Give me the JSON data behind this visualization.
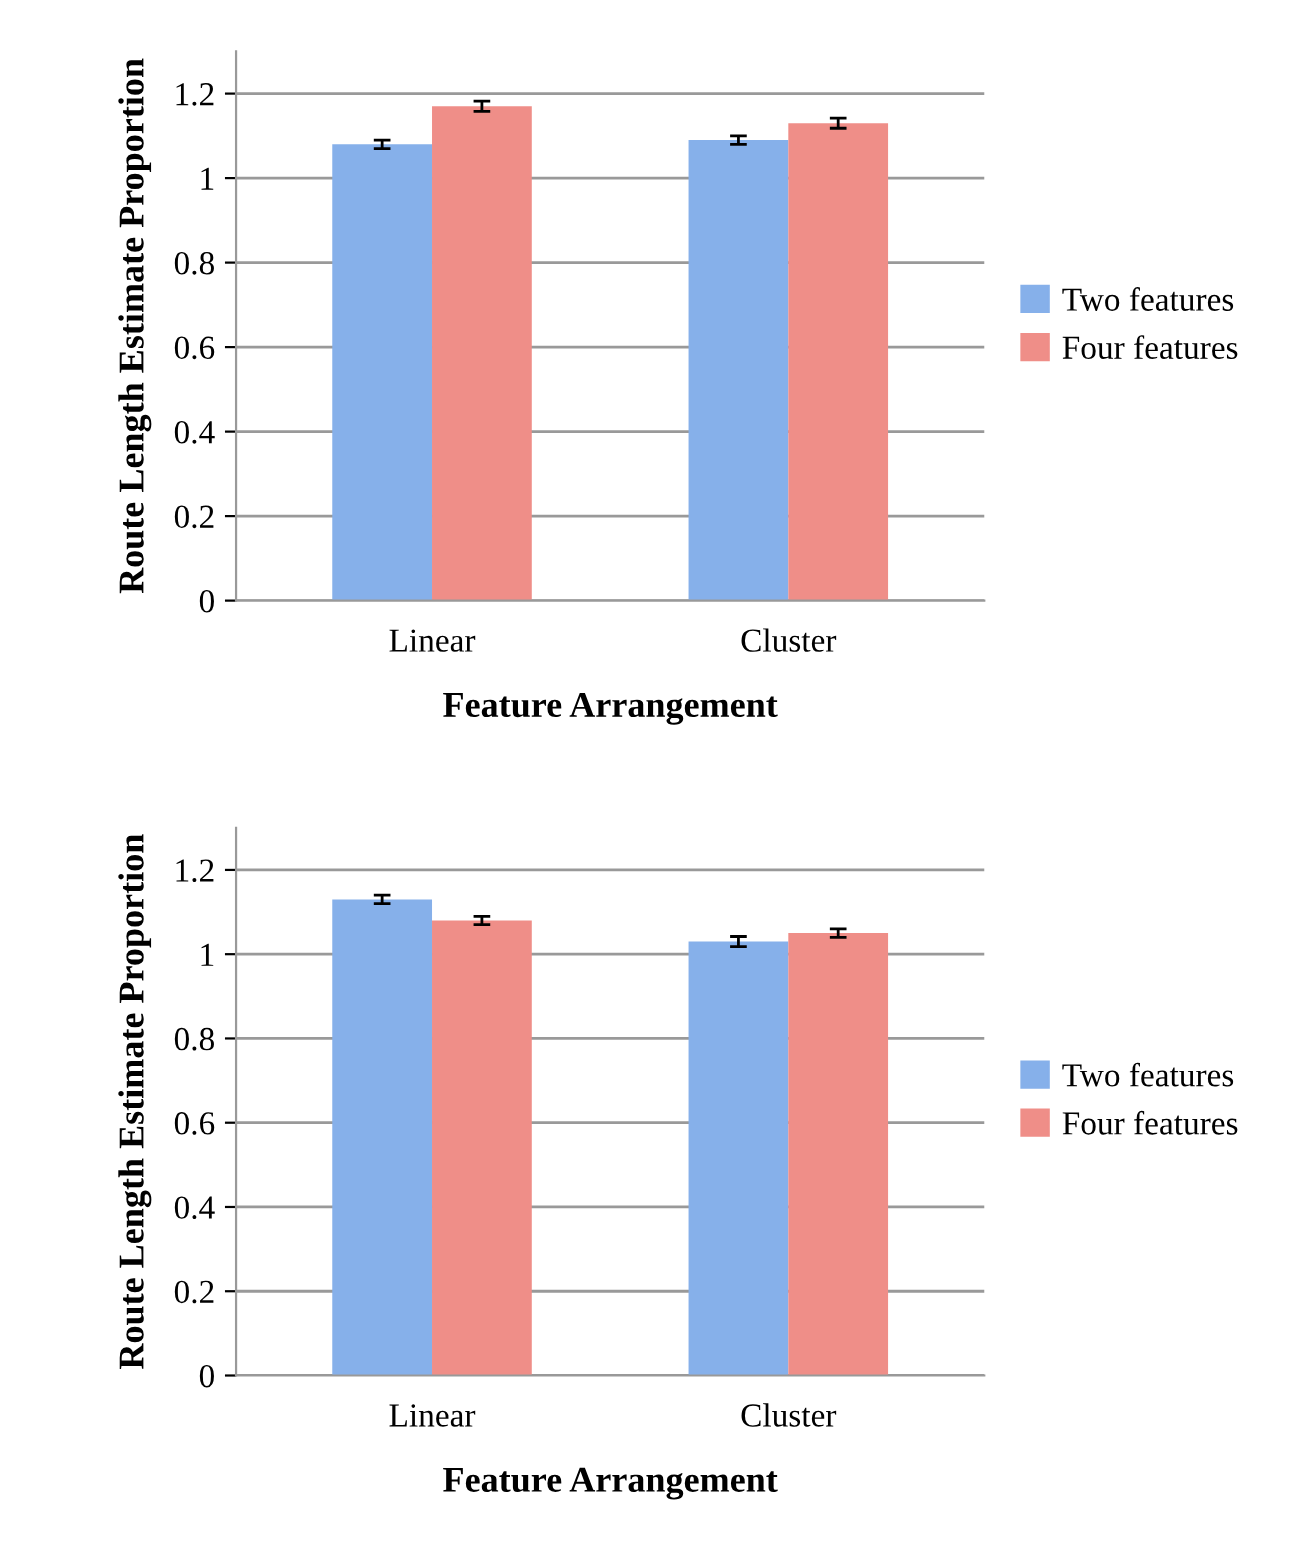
{
  "chart_data": [
    {
      "type": "bar",
      "categories": [
        "Linear",
        "Cluster"
      ],
      "xlabel": "Feature Arrangement",
      "ylabel": "Route Length Estimate Proportion",
      "ylim": [
        0,
        1.3
      ],
      "yticks": [
        0,
        0.2,
        0.4,
        0.6,
        0.8,
        1,
        1.2
      ],
      "grid": "y",
      "legend": "right",
      "series": [
        {
          "name": "Two features",
          "color": "#86b0ea",
          "values": [
            1.08,
            1.09
          ],
          "errors": [
            0.01,
            0.01
          ]
        },
        {
          "name": "Four features",
          "color": "#ef8e88",
          "values": [
            1.17,
            1.13
          ],
          "errors": [
            0.012,
            0.012
          ]
        }
      ]
    },
    {
      "type": "bar",
      "categories": [
        "Linear",
        "Cluster"
      ],
      "xlabel": "Feature Arrangement",
      "ylabel": "Route Length Estimate Proportion",
      "ylim": [
        0,
        1.3
      ],
      "yticks": [
        0,
        0.2,
        0.4,
        0.6,
        0.8,
        1,
        1.2
      ],
      "grid": "y",
      "legend": "right",
      "series": [
        {
          "name": "Two features",
          "color": "#86b0ea",
          "values": [
            1.13,
            1.03
          ],
          "errors": [
            0.01,
            0.012
          ]
        },
        {
          "name": "Four features",
          "color": "#ef8e88",
          "values": [
            1.08,
            1.05
          ],
          "errors": [
            0.01,
            0.01
          ]
        }
      ]
    }
  ]
}
